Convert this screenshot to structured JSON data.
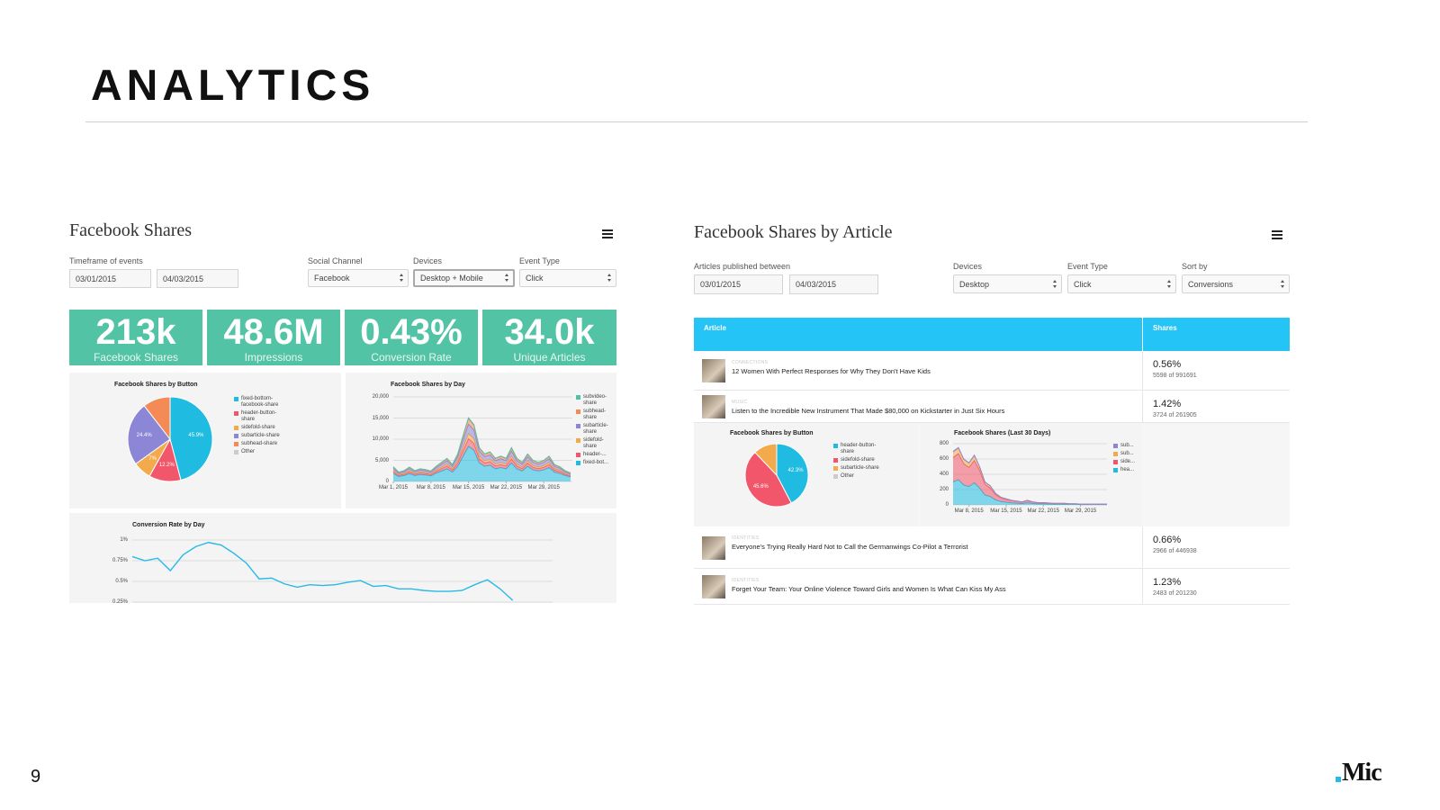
{
  "title": "ANALYTICS",
  "page_number": "9",
  "logo": "Mic",
  "left_panel": {
    "title": "Facebook Shares",
    "timeframe": {
      "label": "Timeframe of events",
      "from": "03/01/2015",
      "to": "04/03/2015"
    },
    "selects": [
      {
        "label": "Social Channel",
        "value": "Facebook"
      },
      {
        "label": "Devices",
        "value": "Desktop + Mobile"
      },
      {
        "label": "Event Type",
        "value": "Click"
      }
    ],
    "kpis": [
      {
        "value": "213k",
        "label": "Facebook Shares"
      },
      {
        "value": "48.6M",
        "label": "Impressions"
      },
      {
        "value": "0.43%",
        "label": "Conversion Rate"
      },
      {
        "value": "34.0k",
        "label": "Unique Articles"
      }
    ],
    "chart_data": [
      {
        "type": "pie",
        "title": "Facebook Shares by Button",
        "categories": [
          "fixed-bottom-facebook-share",
          "header-button-share",
          "sidefold-share",
          "subarticle-share",
          "subhead-share",
          "Other"
        ],
        "values": [
          45.9,
          12.2,
          7,
          24.4,
          10.5,
          0
        ],
        "value_labels": [
          "45.9%",
          "12.2%",
          "7%",
          "24.4%",
          null,
          null
        ],
        "colors": [
          "#1fbbe0",
          "#f2566b",
          "#f3aa4c",
          "#8b86d6",
          "#f48a55",
          "#cccccc"
        ]
      },
      {
        "type": "area",
        "title": "Facebook Shares by Day",
        "x": [
          "2015-03-01",
          "2015-03-02",
          "2015-03-03",
          "2015-03-04",
          "2015-03-05",
          "2015-03-06",
          "2015-03-07",
          "2015-03-08",
          "2015-03-09",
          "2015-03-10",
          "2015-03-11",
          "2015-03-12",
          "2015-03-13",
          "2015-03-14",
          "2015-03-15",
          "2015-03-16",
          "2015-03-17",
          "2015-03-18",
          "2015-03-19",
          "2015-03-20",
          "2015-03-21",
          "2015-03-22",
          "2015-03-23",
          "2015-03-24",
          "2015-03-25",
          "2015-03-26",
          "2015-03-27",
          "2015-03-28",
          "2015-03-29",
          "2015-03-30",
          "2015-03-31",
          "2015-04-01",
          "2015-04-02",
          "2015-04-03"
        ],
        "xlim": [
          "2015-03-01",
          "2015-04-03"
        ],
        "xticks": [
          {
            "value": "2015-03-01",
            "label": "Mar 1, 2015"
          },
          {
            "value": "2015-03-08",
            "label": "Mar 8, 2015"
          },
          {
            "value": "2015-03-15",
            "label": "Mar 15, 2015"
          },
          {
            "value": "2015-03-22",
            "label": "Mar 22, 2015"
          },
          {
            "value": "2015-03-29",
            "label": "Mar 29, 2015"
          }
        ],
        "ylim": [
          0,
          20000
        ],
        "yticks": [
          0,
          {
            "value": 5000,
            "label": "5,000"
          },
          {
            "value": 10000,
            "label": "10,000"
          },
          {
            "value": 15000,
            "label": "15,000"
          },
          {
            "value": 20000,
            "label": "20,000"
          }
        ],
        "stacked": true,
        "series": [
          {
            "name": "subvideo-share",
            "color": "#4fc1a5",
            "values": [
              40,
              30,
              30,
              40,
              30,
              30,
              30,
              30,
              40,
              50,
              60,
              40,
              60,
              100,
              150,
              130,
              80,
              60,
              70,
              60,
              60,
              60,
              80,
              60,
              50,
              60,
              50,
              40,
              50,
              60,
              40,
              40,
              30,
              20
            ]
          },
          {
            "name": "subhead-share",
            "color": "#f48a55",
            "values": [
              320,
              200,
              230,
              310,
              230,
              270,
              250,
              220,
              320,
              400,
              500,
              360,
              580,
              990,
              1350,
              1220,
              720,
              580,
              630,
              500,
              540,
              500,
              720,
              500,
              400,
              580,
              450,
              400,
              450,
              540,
              360,
              320,
              220,
              180
            ]
          },
          {
            "name": "subarticle-share",
            "color": "#8b86d6",
            "values": [
              520,
              330,
              390,
              510,
              390,
              450,
              420,
              380,
              540,
              680,
              820,
              600,
              980,
              1650,
              2250,
              2020,
              1200,
              980,
              1050,
              820,
              900,
              820,
              1200,
              820,
              680,
              980,
              750,
              680,
              750,
              900,
              600,
              520,
              380,
              300
            ]
          },
          {
            "name": "sidefold-share",
            "color": "#f3aa4c",
            "values": [
              280,
              180,
              210,
              270,
              210,
              240,
              220,
              200,
              290,
              360,
              440,
              320,
              520,
              880,
              1200,
              1080,
              640,
              520,
              560,
              440,
              480,
              440,
              640,
              440,
              360,
              520,
              400,
              360,
              400,
              480,
              320,
              280,
              200,
              160
            ]
          },
          {
            "name": "header-...",
            "color": "#f2566b",
            "values": [
              420,
              260,
              310,
              410,
              310,
              360,
              340,
              300,
              430,
              540,
              660,
              480,
              780,
              1320,
              1800,
              1620,
              960,
              780,
              840,
              660,
              720,
              660,
              960,
              660,
              540,
              780,
              600,
              540,
              600,
              720,
              480,
              420,
              300,
              240
            ]
          },
          {
            "name": "fixed-bot...",
            "color": "#1fbbe0",
            "values": [
              1900,
              1200,
              1400,
              1850,
              1400,
              1650,
              1550,
              1350,
              2000,
              2500,
              3000,
              2200,
              3600,
              6000,
              8300,
              7400,
              4400,
              3600,
              3850,
              3000,
              3300,
              3000,
              4400,
              3000,
              2500,
              3600,
              2750,
              2500,
              2750,
              3300,
              2200,
              1900,
              1400,
              1100
            ]
          }
        ]
      },
      {
        "type": "line",
        "title": "Conversion Rate by Day",
        "x": [
          "2015-03-01",
          "2015-03-02",
          "2015-03-03",
          "2015-03-04",
          "2015-03-05",
          "2015-03-06",
          "2015-03-07",
          "2015-03-08",
          "2015-03-09",
          "2015-03-10",
          "2015-03-11",
          "2015-03-12",
          "2015-03-13",
          "2015-03-14",
          "2015-03-15",
          "2015-03-16",
          "2015-03-17",
          "2015-03-18",
          "2015-03-19",
          "2015-03-20",
          "2015-03-21",
          "2015-03-22",
          "2015-03-23",
          "2015-03-24",
          "2015-03-25",
          "2015-03-26",
          "2015-03-27",
          "2015-03-28",
          "2015-03-29",
          "2015-03-30",
          "2015-03-31"
        ],
        "xlim": [
          "2015-03-01",
          "2015-04-03"
        ],
        "xticks": [],
        "ylim": [
          0.25,
          1
        ],
        "yticks": [
          {
            "value": 0.25,
            "label": "0.25%"
          },
          {
            "value": 0.5,
            "label": "0.5%"
          },
          {
            "value": 0.75,
            "label": "0.75%"
          },
          {
            "value": 1,
            "label": "1%"
          }
        ],
        "series": [
          {
            "name": "Conversion Rate",
            "color": "#29b9e6",
            "values": [
              0.8,
              0.75,
              0.78,
              0.63,
              0.82,
              0.92,
              0.97,
              0.94,
              0.84,
              0.72,
              0.53,
              0.54,
              0.47,
              0.43,
              0.46,
              0.45,
              0.46,
              0.49,
              0.51,
              0.44,
              0.45,
              0.41,
              0.41,
              0.39,
              0.38,
              0.38,
              0.39,
              0.46,
              0.52,
              0.41,
              0.27
            ]
          }
        ]
      }
    ]
  },
  "right_panel": {
    "title": "Facebook Shares by Article",
    "timeframe": {
      "label": "Articles published between",
      "from": "03/01/2015",
      "to": "04/03/2015"
    },
    "selects": [
      {
        "label": "Devices",
        "value": "Desktop"
      },
      {
        "label": "Event Type",
        "value": "Click"
      },
      {
        "label": "Sort by",
        "value": "Conversions"
      }
    ],
    "table": {
      "columns": [
        "Article",
        "Shares"
      ],
      "rows": [
        {
          "section": "CONNECTIONS",
          "title": "12 Women With Perfect Responses for Why They Don't Have Kids",
          "rate": "0.56%",
          "detail": "5598 of 991691"
        },
        {
          "section": "MUSIC",
          "title": "Listen to the Incredible New Instrument That Made $80,000 on Kickstarter in Just Six Hours",
          "rate": "1.42%",
          "detail": "3724 of 261905"
        },
        {
          "section": "IDENTITIES",
          "title": "Everyone's Trying Really Hard Not to Call the Germanwings Co-Pilot a Terrorist",
          "rate": "0.66%",
          "detail": "2966 of 446938"
        },
        {
          "section": "IDENTITIES",
          "title": "Forget Your Team: Your Online Violence Toward Girls and Women Is What Can Kiss My Ass",
          "rate": "1.23%",
          "detail": "2483 of 201230"
        }
      ]
    },
    "chart_data": [
      {
        "type": "pie",
        "title": "Facebook Shares by Button",
        "categories": [
          "header-button-share",
          "sidefold-share",
          "subarticle-share",
          "Other"
        ],
        "values": [
          42.3,
          45.6,
          12.1,
          0
        ],
        "value_labels": [
          "42.3%",
          "45.6%",
          null,
          null
        ],
        "colors": [
          "#1fbbe0",
          "#f2566b",
          "#f3aa4c",
          "#cccccc"
        ]
      },
      {
        "type": "area",
        "title": "Facebook Shares (Last 30 Days)",
        "x": [
          "2015-03-05",
          "2015-03-06",
          "2015-03-07",
          "2015-03-08",
          "2015-03-09",
          "2015-03-10",
          "2015-03-11",
          "2015-03-12",
          "2015-03-13",
          "2015-03-14",
          "2015-03-15",
          "2015-03-16",
          "2015-03-17",
          "2015-03-18",
          "2015-03-19",
          "2015-03-20",
          "2015-03-21",
          "2015-03-22",
          "2015-03-23",
          "2015-03-24",
          "2015-03-25",
          "2015-03-26",
          "2015-03-27",
          "2015-03-28",
          "2015-03-29",
          "2015-03-30",
          "2015-03-31",
          "2015-04-01",
          "2015-04-02",
          "2015-04-03"
        ],
        "xlim": [
          "2015-03-05",
          "2015-04-03"
        ],
        "xticks": [
          {
            "value": "2015-03-08",
            "label": "Mar 8, 2015"
          },
          {
            "value": "2015-03-15",
            "label": "Mar 15, 2015"
          },
          {
            "value": "2015-03-22",
            "label": "Mar 22, 2015"
          },
          {
            "value": "2015-03-29",
            "label": "Mar 29, 2015"
          }
        ],
        "ylim": [
          0,
          800
        ],
        "yticks": [
          0,
          200,
          400,
          600,
          800
        ],
        "stacked": true,
        "series": [
          {
            "name": "sub...",
            "color": "#8b86d6",
            "values": [
              10,
              10,
              5,
              5,
              5,
              5,
              2,
              2,
              1,
              1,
              1,
              1,
              1,
              1,
              1,
              1,
              1,
              1,
              1,
              0,
              0,
              0,
              0,
              0,
              0,
              0,
              0,
              0,
              0,
              0
            ]
          },
          {
            "name": "sub...",
            "color": "#f3aa4c",
            "values": [
              70,
              70,
              55,
              55,
              65,
              45,
              28,
              28,
              14,
              9,
              8,
              5,
              4,
              3,
              5,
              3,
              2,
              2,
              2,
              2,
              2,
              2,
              2,
              2,
              1,
              1,
              1,
              1,
              1,
              1
            ]
          },
          {
            "name": "side...",
            "color": "#f2566b",
            "values": [
              320,
              340,
              280,
              250,
              290,
              230,
              140,
              110,
              70,
              45,
              36,
              27,
              23,
              18,
              27,
              18,
              14,
              14,
              11,
              9,
              9,
              9,
              6,
              6,
              5,
              5,
              5,
              5,
              5,
              5
            ]
          },
          {
            "name": "hea...",
            "color": "#1fbbe0",
            "values": [
              300,
              330,
              260,
              240,
              290,
              220,
              130,
              110,
              65,
              45,
              35,
              27,
              22,
              18,
              27,
              18,
              13,
              13,
              11,
              9,
              9,
              9,
              7,
              7,
              4,
              4,
              4,
              4,
              4,
              4
            ]
          }
        ]
      }
    ]
  }
}
